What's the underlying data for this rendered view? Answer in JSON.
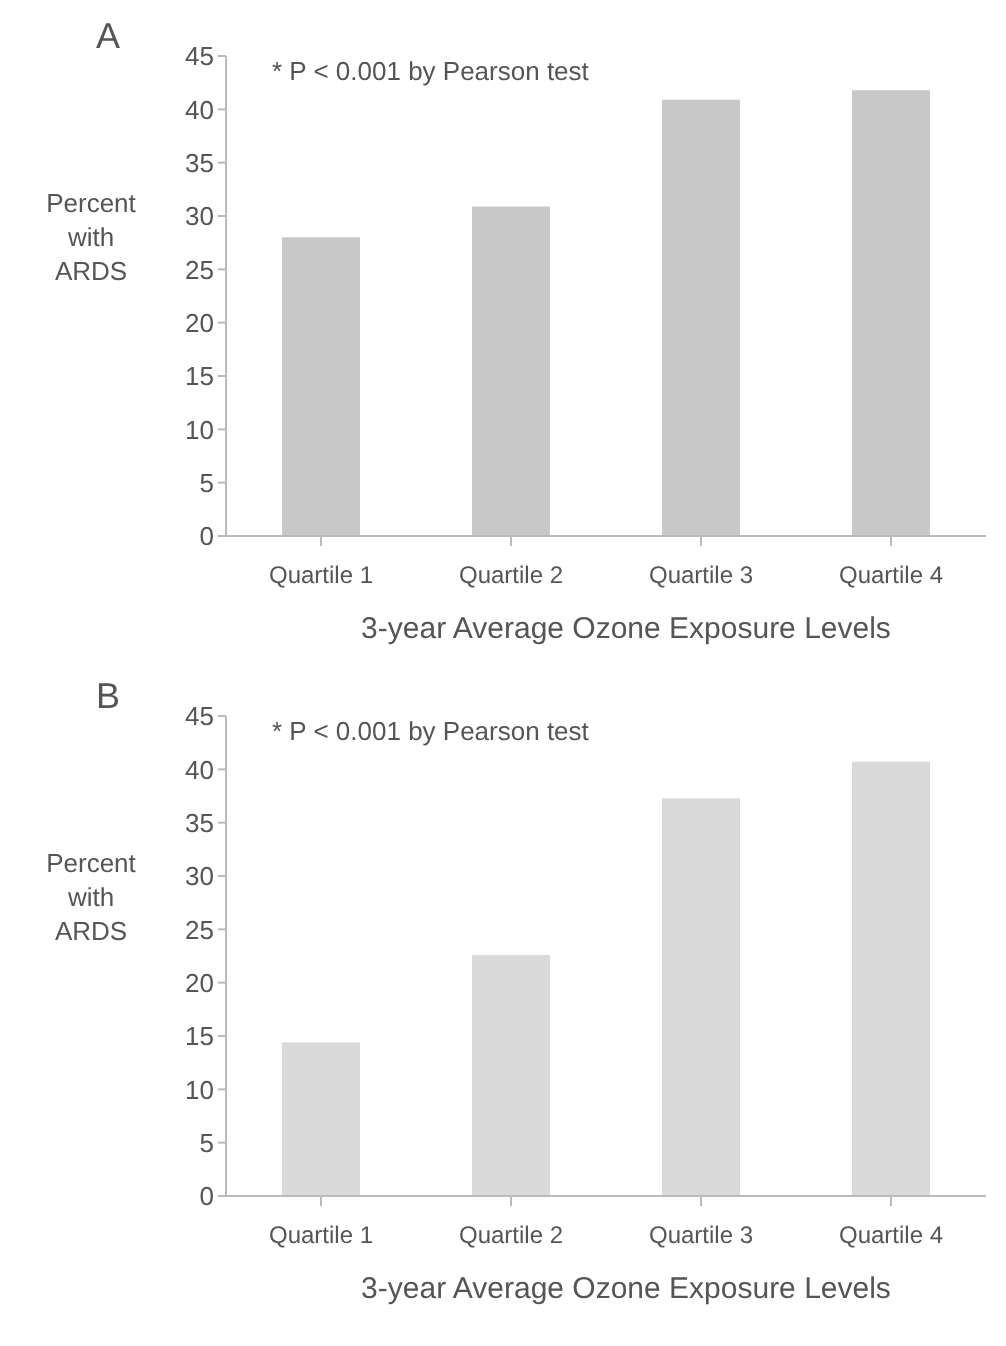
{
  "chart_data": [
    {
      "type": "bar",
      "title": "A",
      "ylabel": "Percent with ARDS",
      "xlabel": "3-year Average Ozone Exposure Levels",
      "annotations": [
        "* P < 0.001 by Pearson test"
      ],
      "categories": [
        "Quartile 1",
        "Quartile 2",
        "Quartile 3",
        "Quartile 4"
      ],
      "values": [
        28.0,
        30.9,
        40.9,
        41.8
      ],
      "color": "#c8c8c8",
      "ylim": [
        0,
        45
      ],
      "yticks": [
        0,
        5,
        10,
        15,
        20,
        25,
        30,
        35,
        40,
        45
      ],
      "grid": false,
      "legend": false
    },
    {
      "type": "bar",
      "title": "B",
      "ylabel": "Percent with ARDS",
      "xlabel": "3-year Average Ozone Exposure Levels",
      "annotations": [
        "* P < 0.001 by Pearson test"
      ],
      "categories": [
        "Quartile 1",
        "Quartile 2",
        "Quartile 3",
        "Quartile 4"
      ],
      "values": [
        14.4,
        22.6,
        37.3,
        40.7
      ],
      "color": "#dadada",
      "ylim": [
        0,
        45
      ],
      "yticks": [
        0,
        5,
        10,
        15,
        20,
        25,
        30,
        35,
        40,
        45
      ],
      "grid": false,
      "legend": false
    }
  ]
}
